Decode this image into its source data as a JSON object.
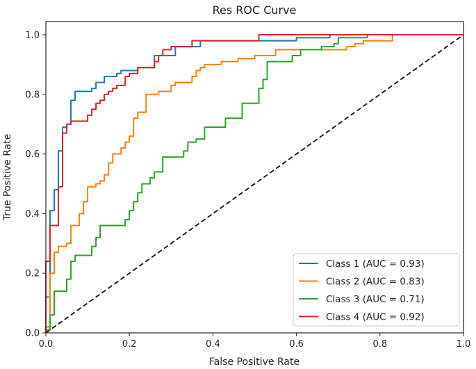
{
  "chart_data": {
    "type": "line",
    "title": "Res ROC Curve",
    "xlabel": "False Positive Rate",
    "ylabel": "True Positive Rate",
    "xlim": [
      0.0,
      1.0
    ],
    "ylim": [
      0.0,
      1.0
    ],
    "xticks": [
      "0.0",
      "0.2",
      "0.4",
      "0.6",
      "0.8",
      "1.0"
    ],
    "yticks": [
      "0.0",
      "0.2",
      "0.4",
      "0.6",
      "0.8",
      "1.0"
    ],
    "grid": false,
    "legend_position": "lower-right",
    "diagonal": {
      "color": "#222222",
      "style": "dashed"
    },
    "series": [
      {
        "name": "Class 1 (AUC = 0.93)",
        "color": "#1f77b4",
        "points": [
          [
            0.0,
            0.0
          ],
          [
            0.0,
            0.12
          ],
          [
            0.01,
            0.12
          ],
          [
            0.01,
            0.41
          ],
          [
            0.02,
            0.41
          ],
          [
            0.02,
            0.48
          ],
          [
            0.03,
            0.48
          ],
          [
            0.03,
            0.61
          ],
          [
            0.04,
            0.61
          ],
          [
            0.04,
            0.69
          ],
          [
            0.05,
            0.69
          ],
          [
            0.05,
            0.7
          ],
          [
            0.06,
            0.7
          ],
          [
            0.06,
            0.78
          ],
          [
            0.07,
            0.78
          ],
          [
            0.07,
            0.81
          ],
          [
            0.11,
            0.81
          ],
          [
            0.11,
            0.82
          ],
          [
            0.12,
            0.82
          ],
          [
            0.12,
            0.84
          ],
          [
            0.14,
            0.84
          ],
          [
            0.14,
            0.86
          ],
          [
            0.17,
            0.86
          ],
          [
            0.17,
            0.87
          ],
          [
            0.18,
            0.87
          ],
          [
            0.18,
            0.88
          ],
          [
            0.22,
            0.88
          ],
          [
            0.22,
            0.89
          ],
          [
            0.26,
            0.89
          ],
          [
            0.26,
            0.93
          ],
          [
            0.31,
            0.93
          ],
          [
            0.31,
            0.96
          ],
          [
            0.37,
            0.96
          ],
          [
            0.37,
            0.98
          ],
          [
            0.6,
            0.98
          ],
          [
            0.6,
            0.99
          ],
          [
            0.68,
            0.99
          ],
          [
            0.68,
            1.0
          ],
          [
            1.0,
            1.0
          ]
        ]
      },
      {
        "name": "Class 2 (AUC = 0.83)",
        "color": "#ff7f0e",
        "points": [
          [
            0.0,
            0.0
          ],
          [
            0.0,
            0.02
          ],
          [
            0.01,
            0.02
          ],
          [
            0.01,
            0.2
          ],
          [
            0.02,
            0.2
          ],
          [
            0.02,
            0.27
          ],
          [
            0.03,
            0.27
          ],
          [
            0.03,
            0.29
          ],
          [
            0.05,
            0.29
          ],
          [
            0.05,
            0.3
          ],
          [
            0.06,
            0.3
          ],
          [
            0.06,
            0.36
          ],
          [
            0.08,
            0.36
          ],
          [
            0.08,
            0.4
          ],
          [
            0.09,
            0.4
          ],
          [
            0.09,
            0.44
          ],
          [
            0.1,
            0.44
          ],
          [
            0.1,
            0.49
          ],
          [
            0.12,
            0.49
          ],
          [
            0.12,
            0.5
          ],
          [
            0.13,
            0.5
          ],
          [
            0.13,
            0.51
          ],
          [
            0.14,
            0.51
          ],
          [
            0.14,
            0.53
          ],
          [
            0.15,
            0.53
          ],
          [
            0.15,
            0.57
          ],
          [
            0.16,
            0.57
          ],
          [
            0.16,
            0.6
          ],
          [
            0.18,
            0.6
          ],
          [
            0.18,
            0.62
          ],
          [
            0.19,
            0.62
          ],
          [
            0.19,
            0.64
          ],
          [
            0.2,
            0.64
          ],
          [
            0.2,
            0.66
          ],
          [
            0.21,
            0.66
          ],
          [
            0.21,
            0.72
          ],
          [
            0.22,
            0.72
          ],
          [
            0.22,
            0.74
          ],
          [
            0.24,
            0.74
          ],
          [
            0.24,
            0.8
          ],
          [
            0.27,
            0.8
          ],
          [
            0.27,
            0.81
          ],
          [
            0.3,
            0.81
          ],
          [
            0.3,
            0.83
          ],
          [
            0.31,
            0.83
          ],
          [
            0.31,
            0.84
          ],
          [
            0.35,
            0.84
          ],
          [
            0.35,
            0.86
          ],
          [
            0.36,
            0.86
          ],
          [
            0.36,
            0.88
          ],
          [
            0.37,
            0.88
          ],
          [
            0.37,
            0.89
          ],
          [
            0.38,
            0.89
          ],
          [
            0.38,
            0.9
          ],
          [
            0.42,
            0.9
          ],
          [
            0.42,
            0.91
          ],
          [
            0.46,
            0.91
          ],
          [
            0.46,
            0.92
          ],
          [
            0.5,
            0.92
          ],
          [
            0.5,
            0.93
          ],
          [
            0.55,
            0.93
          ],
          [
            0.55,
            0.95
          ],
          [
            0.72,
            0.95
          ],
          [
            0.72,
            0.96
          ],
          [
            0.74,
            0.96
          ],
          [
            0.74,
            0.97
          ],
          [
            0.76,
            0.97
          ],
          [
            0.76,
            0.98
          ],
          [
            0.83,
            0.98
          ],
          [
            0.83,
            1.0
          ],
          [
            1.0,
            1.0
          ]
        ]
      },
      {
        "name": "Class 3 (AUC = 0.71)",
        "color": "#2ca02c",
        "points": [
          [
            0.0,
            0.0
          ],
          [
            0.0,
            0.01
          ],
          [
            0.01,
            0.01
          ],
          [
            0.01,
            0.06
          ],
          [
            0.02,
            0.06
          ],
          [
            0.02,
            0.14
          ],
          [
            0.05,
            0.14
          ],
          [
            0.05,
            0.18
          ],
          [
            0.06,
            0.18
          ],
          [
            0.06,
            0.24
          ],
          [
            0.07,
            0.24
          ],
          [
            0.07,
            0.26
          ],
          [
            0.11,
            0.26
          ],
          [
            0.11,
            0.29
          ],
          [
            0.12,
            0.29
          ],
          [
            0.12,
            0.32
          ],
          [
            0.13,
            0.32
          ],
          [
            0.13,
            0.36
          ],
          [
            0.19,
            0.36
          ],
          [
            0.19,
            0.38
          ],
          [
            0.2,
            0.38
          ],
          [
            0.2,
            0.41
          ],
          [
            0.21,
            0.41
          ],
          [
            0.21,
            0.44
          ],
          [
            0.22,
            0.44
          ],
          [
            0.22,
            0.47
          ],
          [
            0.23,
            0.47
          ],
          [
            0.23,
            0.5
          ],
          [
            0.25,
            0.5
          ],
          [
            0.25,
            0.52
          ],
          [
            0.26,
            0.52
          ],
          [
            0.26,
            0.54
          ],
          [
            0.28,
            0.54
          ],
          [
            0.28,
            0.59
          ],
          [
            0.33,
            0.59
          ],
          [
            0.33,
            0.61
          ],
          [
            0.34,
            0.61
          ],
          [
            0.34,
            0.64
          ],
          [
            0.36,
            0.64
          ],
          [
            0.36,
            0.65
          ],
          [
            0.38,
            0.65
          ],
          [
            0.38,
            0.69
          ],
          [
            0.43,
            0.69
          ],
          [
            0.43,
            0.72
          ],
          [
            0.47,
            0.72
          ],
          [
            0.47,
            0.77
          ],
          [
            0.51,
            0.77
          ],
          [
            0.51,
            0.82
          ],
          [
            0.52,
            0.82
          ],
          [
            0.52,
            0.85
          ],
          [
            0.53,
            0.85
          ],
          [
            0.53,
            0.91
          ],
          [
            0.59,
            0.91
          ],
          [
            0.59,
            0.93
          ],
          [
            0.61,
            0.93
          ],
          [
            0.61,
            0.95
          ],
          [
            0.66,
            0.95
          ],
          [
            0.66,
            0.96
          ],
          [
            0.69,
            0.96
          ],
          [
            0.69,
            0.97
          ],
          [
            0.7,
            0.97
          ],
          [
            0.7,
            0.99
          ],
          [
            0.77,
            0.99
          ],
          [
            0.77,
            1.0
          ],
          [
            1.0,
            1.0
          ]
        ]
      },
      {
        "name": "Class 4 (AUC = 0.92)",
        "color": "#d62728",
        "points": [
          [
            0.0,
            0.0
          ],
          [
            0.0,
            0.24
          ],
          [
            0.01,
            0.24
          ],
          [
            0.01,
            0.36
          ],
          [
            0.03,
            0.36
          ],
          [
            0.03,
            0.49
          ],
          [
            0.04,
            0.49
          ],
          [
            0.04,
            0.67
          ],
          [
            0.05,
            0.67
          ],
          [
            0.05,
            0.7
          ],
          [
            0.06,
            0.7
          ],
          [
            0.06,
            0.71
          ],
          [
            0.1,
            0.71
          ],
          [
            0.1,
            0.73
          ],
          [
            0.11,
            0.73
          ],
          [
            0.11,
            0.75
          ],
          [
            0.12,
            0.75
          ],
          [
            0.12,
            0.77
          ],
          [
            0.13,
            0.77
          ],
          [
            0.13,
            0.78
          ],
          [
            0.14,
            0.78
          ],
          [
            0.14,
            0.8
          ],
          [
            0.15,
            0.8
          ],
          [
            0.15,
            0.81
          ],
          [
            0.16,
            0.81
          ],
          [
            0.16,
            0.82
          ],
          [
            0.17,
            0.82
          ],
          [
            0.17,
            0.83
          ],
          [
            0.19,
            0.83
          ],
          [
            0.19,
            0.86
          ],
          [
            0.2,
            0.86
          ],
          [
            0.2,
            0.87
          ],
          [
            0.22,
            0.87
          ],
          [
            0.22,
            0.89
          ],
          [
            0.26,
            0.89
          ],
          [
            0.26,
            0.91
          ],
          [
            0.27,
            0.91
          ],
          [
            0.27,
            0.93
          ],
          [
            0.28,
            0.93
          ],
          [
            0.28,
            0.95
          ],
          [
            0.3,
            0.95
          ],
          [
            0.3,
            0.96
          ],
          [
            0.35,
            0.96
          ],
          [
            0.35,
            0.98
          ],
          [
            0.51,
            0.98
          ],
          [
            0.51,
            1.0
          ],
          [
            1.0,
            1.0
          ]
        ]
      }
    ]
  }
}
